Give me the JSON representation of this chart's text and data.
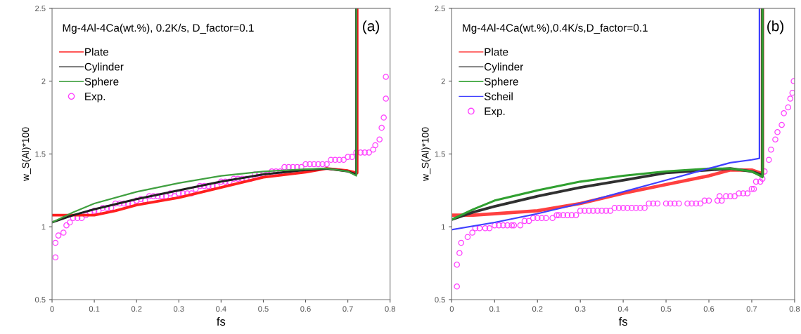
{
  "chart_data": [
    {
      "type": "line",
      "xlabel": "fs",
      "ylabel": "w_S(Al)*100",
      "annotations": [
        "Mg-4Al-4Ca(wt.%), 0.2K/s, D_factor=0.1",
        "(a)"
      ],
      "xlim": [
        0,
        0.8
      ],
      "ylim": [
        0.5,
        2.5
      ],
      "xticks": [
        0,
        0.1,
        0.2,
        0.3,
        0.4,
        0.5,
        0.6,
        0.7,
        0.8
      ],
      "yticks": [
        0.5,
        1,
        1.5,
        2,
        2.5
      ],
      "legend": "top left",
      "series": [
        {
          "name": "Plate",
          "color": "#ff2020",
          "marker": "none",
          "x": [
            0,
            0.05,
            0.1,
            0.15,
            0.2,
            0.3,
            0.4,
            0.5,
            0.6,
            0.65,
            0.7,
            0.722,
            0.722
          ],
          "values": [
            1.08,
            1.08,
            1.08,
            1.11,
            1.15,
            1.2,
            1.27,
            1.34,
            1.375,
            1.4,
            1.385,
            1.37,
            2.5
          ]
        },
        {
          "name": "Cylinder",
          "color": "#202020",
          "marker": "none",
          "x": [
            0,
            0.05,
            0.1,
            0.2,
            0.3,
            0.4,
            0.5,
            0.6,
            0.65,
            0.7,
            0.72,
            0.72
          ],
          "values": [
            1.03,
            1.08,
            1.12,
            1.19,
            1.25,
            1.31,
            1.36,
            1.39,
            1.4,
            1.38,
            1.36,
            2.5
          ]
        },
        {
          "name": "Sphere",
          "color": "#40a040",
          "marker": "none",
          "x": [
            0,
            0.05,
            0.1,
            0.2,
            0.3,
            0.4,
            0.5,
            0.6,
            0.65,
            0.7,
            0.72,
            0.72
          ],
          "values": [
            1.03,
            1.1,
            1.16,
            1.24,
            1.3,
            1.35,
            1.38,
            1.395,
            1.4,
            1.38,
            1.35,
            2.5
          ]
        },
        {
          "name": "Exp.",
          "type": "scatter",
          "color": "#ff40ff",
          "marker": "circle",
          "x": [
            0.008,
            0.008,
            0.015,
            0.027,
            0.034,
            0.042,
            0.05,
            0.06,
            0.07,
            0.08,
            0.09,
            0.1,
            0.11,
            0.12,
            0.13,
            0.14,
            0.15,
            0.16,
            0.17,
            0.18,
            0.19,
            0.2,
            0.21,
            0.22,
            0.23,
            0.24,
            0.25,
            0.26,
            0.27,
            0.28,
            0.29,
            0.3,
            0.31,
            0.32,
            0.33,
            0.34,
            0.35,
            0.36,
            0.37,
            0.38,
            0.39,
            0.4,
            0.41,
            0.42,
            0.43,
            0.44,
            0.45,
            0.46,
            0.47,
            0.48,
            0.49,
            0.5,
            0.51,
            0.52,
            0.53,
            0.54,
            0.55,
            0.56,
            0.57,
            0.58,
            0.59,
            0.6,
            0.61,
            0.62,
            0.63,
            0.64,
            0.65,
            0.66,
            0.67,
            0.68,
            0.69,
            0.7,
            0.71,
            0.72,
            0.73,
            0.74,
            0.75,
            0.76,
            0.765,
            0.775,
            0.78,
            0.785,
            0.79,
            0.79
          ],
          "values": [
            0.79,
            0.89,
            0.94,
            0.96,
            1.01,
            1.03,
            1.06,
            1.06,
            1.06,
            1.08,
            1.1,
            1.11,
            1.11,
            1.13,
            1.13,
            1.13,
            1.16,
            1.16,
            1.16,
            1.16,
            1.16,
            1.18,
            1.19,
            1.18,
            1.21,
            1.21,
            1.21,
            1.21,
            1.21,
            1.23,
            1.21,
            1.23,
            1.23,
            1.23,
            1.23,
            1.26,
            1.28,
            1.28,
            1.28,
            1.28,
            1.28,
            1.31,
            1.31,
            1.31,
            1.33,
            1.33,
            1.33,
            1.33,
            1.33,
            1.36,
            1.36,
            1.36,
            1.36,
            1.38,
            1.38,
            1.38,
            1.41,
            1.41,
            1.41,
            1.41,
            1.41,
            1.43,
            1.43,
            1.43,
            1.43,
            1.43,
            1.43,
            1.46,
            1.46,
            1.46,
            1.46,
            1.48,
            1.48,
            1.51,
            1.51,
            1.51,
            1.51,
            1.53,
            1.56,
            1.6,
            1.68,
            1.75,
            1.88,
            2.03
          ]
        }
      ]
    },
    {
      "type": "line",
      "xlabel": "fs",
      "ylabel": "w_S(Al)*100",
      "annotations": [
        "Mg-4Al-4Ca(wt.%),0.4K/s,D_factor=0.1",
        "(b)"
      ],
      "xlim": [
        0,
        0.8
      ],
      "ylim": [
        0.5,
        2.5
      ],
      "xticks": [
        0,
        0.1,
        0.2,
        0.3,
        0.4,
        0.5,
        0.6,
        0.7,
        0.8
      ],
      "yticks": [
        0.5,
        1,
        1.5,
        2,
        2.5
      ],
      "legend": "top left",
      "series": [
        {
          "name": "Plate",
          "color": "#ff4040",
          "marker": "none",
          "x": [
            0,
            0.05,
            0.1,
            0.2,
            0.3,
            0.4,
            0.5,
            0.6,
            0.65,
            0.7,
            0.72,
            0.725,
            0.725
          ],
          "values": [
            1.08,
            1.08,
            1.09,
            1.11,
            1.16,
            1.23,
            1.29,
            1.35,
            1.39,
            1.39,
            1.37,
            1.36,
            2.5
          ]
        },
        {
          "name": "Cylinder",
          "color": "#303030",
          "marker": "none",
          "x": [
            0,
            0.05,
            0.1,
            0.2,
            0.3,
            0.4,
            0.5,
            0.6,
            0.65,
            0.7,
            0.72,
            0.725,
            0.725
          ],
          "values": [
            1.05,
            1.1,
            1.14,
            1.21,
            1.27,
            1.32,
            1.37,
            1.39,
            1.4,
            1.38,
            1.36,
            1.35,
            2.5
          ]
        },
        {
          "name": "Sphere",
          "color": "#30a030",
          "marker": "none",
          "x": [
            0,
            0.05,
            0.1,
            0.2,
            0.3,
            0.4,
            0.5,
            0.6,
            0.65,
            0.7,
            0.72,
            0.725,
            0.725
          ],
          "values": [
            1.05,
            1.12,
            1.18,
            1.25,
            1.31,
            1.35,
            1.38,
            1.4,
            1.4,
            1.38,
            1.35,
            1.34,
            2.5
          ]
        },
        {
          "name": "Scheil",
          "color": "#4040ff",
          "marker": "none",
          "x": [
            0,
            0.1,
            0.2,
            0.3,
            0.4,
            0.5,
            0.6,
            0.65,
            0.7,
            0.718,
            0.718
          ],
          "values": [
            0.98,
            1.03,
            1.09,
            1.16,
            1.24,
            1.32,
            1.4,
            1.44,
            1.46,
            1.47,
            2.5
          ]
        },
        {
          "name": "Exp.",
          "type": "scatter",
          "color": "#ff40ff",
          "marker": "circle",
          "x": [
            0.012,
            0.012,
            0.018,
            0.022,
            0.037,
            0.048,
            0.055,
            0.065,
            0.078,
            0.088,
            0.1,
            0.11,
            0.12,
            0.13,
            0.14,
            0.145,
            0.16,
            0.17,
            0.18,
            0.19,
            0.2,
            0.21,
            0.22,
            0.235,
            0.245,
            0.25,
            0.26,
            0.27,
            0.28,
            0.29,
            0.3,
            0.31,
            0.32,
            0.33,
            0.34,
            0.35,
            0.36,
            0.37,
            0.38,
            0.39,
            0.4,
            0.41,
            0.42,
            0.43,
            0.44,
            0.45,
            0.46,
            0.47,
            0.48,
            0.5,
            0.51,
            0.52,
            0.53,
            0.55,
            0.56,
            0.57,
            0.58,
            0.59,
            0.6,
            0.62,
            0.625,
            0.63,
            0.64,
            0.65,
            0.66,
            0.67,
            0.68,
            0.69,
            0.7,
            0.705,
            0.71,
            0.72,
            0.725,
            0.73,
            0.74,
            0.745,
            0.755,
            0.76,
            0.77,
            0.775,
            0.785,
            0.79,
            0.795,
            0.798
          ],
          "values": [
            0.59,
            0.74,
            0.82,
            0.89,
            0.93,
            0.96,
            0.99,
            0.99,
            0.99,
            0.99,
            1.01,
            1.01,
            1.01,
            1.01,
            1.01,
            1.01,
            1.01,
            1.04,
            1.04,
            1.06,
            1.06,
            1.06,
            1.06,
            1.06,
            1.08,
            1.08,
            1.08,
            1.08,
            1.08,
            1.08,
            1.11,
            1.11,
            1.11,
            1.11,
            1.11,
            1.11,
            1.11,
            1.11,
            1.13,
            1.13,
            1.13,
            1.13,
            1.13,
            1.13,
            1.13,
            1.13,
            1.16,
            1.16,
            1.16,
            1.16,
            1.16,
            1.16,
            1.16,
            1.16,
            1.16,
            1.16,
            1.16,
            1.18,
            1.18,
            1.18,
            1.21,
            1.18,
            1.21,
            1.21,
            1.21,
            1.23,
            1.23,
            1.23,
            1.26,
            1.26,
            1.31,
            1.31,
            1.33,
            1.38,
            1.46,
            1.53,
            1.6,
            1.65,
            1.7,
            1.78,
            1.82,
            1.88,
            1.92,
            2.0
          ]
        }
      ]
    }
  ]
}
